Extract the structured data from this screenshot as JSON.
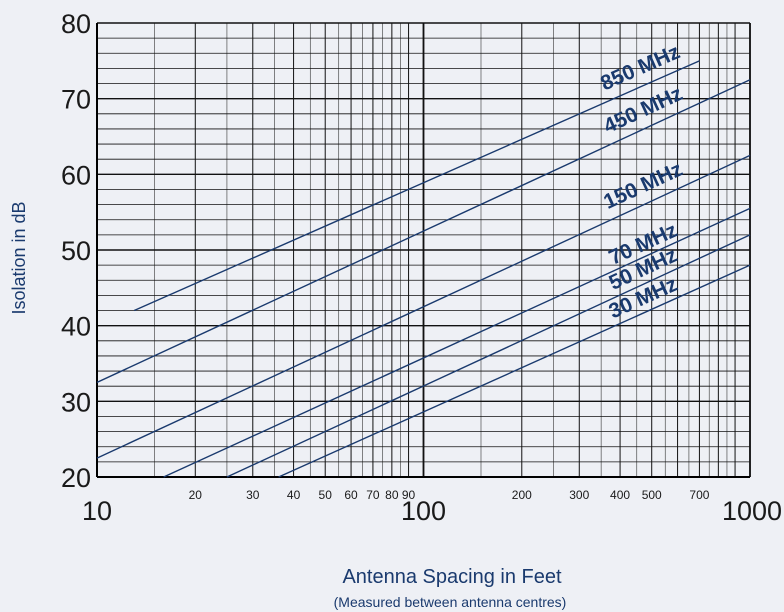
{
  "chart_data": {
    "type": "line",
    "xscale": "log",
    "xlim": [
      10,
      1000
    ],
    "ylim": [
      20,
      80
    ],
    "xlabel": "Antenna Spacing in Feet",
    "xlabel_sub": "(Measured between antenna centres)",
    "ylabel": "Isolation in dB",
    "grid": true,
    "x_major_ticks": [
      "10",
      "100",
      "1000"
    ],
    "x_minor_ticks": [
      "20",
      "30",
      "40",
      "50",
      "60",
      "70",
      "80",
      "90",
      "200",
      "300",
      "400",
      "500",
      "700"
    ],
    "y_ticks": [
      "20",
      "30",
      "40",
      "50",
      "60",
      "70",
      "80"
    ],
    "series": [
      {
        "name": "850 MHz",
        "x": [
          13,
          700
        ],
        "y": [
          42,
          75
        ]
      },
      {
        "name": "450 MHz",
        "x": [
          10,
          1000
        ],
        "y": [
          32.5,
          72.5
        ]
      },
      {
        "name": "150 MHz",
        "x": [
          10,
          1000
        ],
        "y": [
          22.5,
          62.5
        ]
      },
      {
        "name": "70 MHz",
        "x": [
          16,
          1000
        ],
        "y": [
          20,
          55.5
        ]
      },
      {
        "name": "50 MHz",
        "x": [
          25,
          1000
        ],
        "y": [
          20,
          52
        ]
      },
      {
        "name": "30 MHz",
        "x": [
          36,
          1000
        ],
        "y": [
          20,
          48
        ]
      }
    ],
    "line_color": "#1a3a6e",
    "label_color": "#1a3a6e"
  }
}
